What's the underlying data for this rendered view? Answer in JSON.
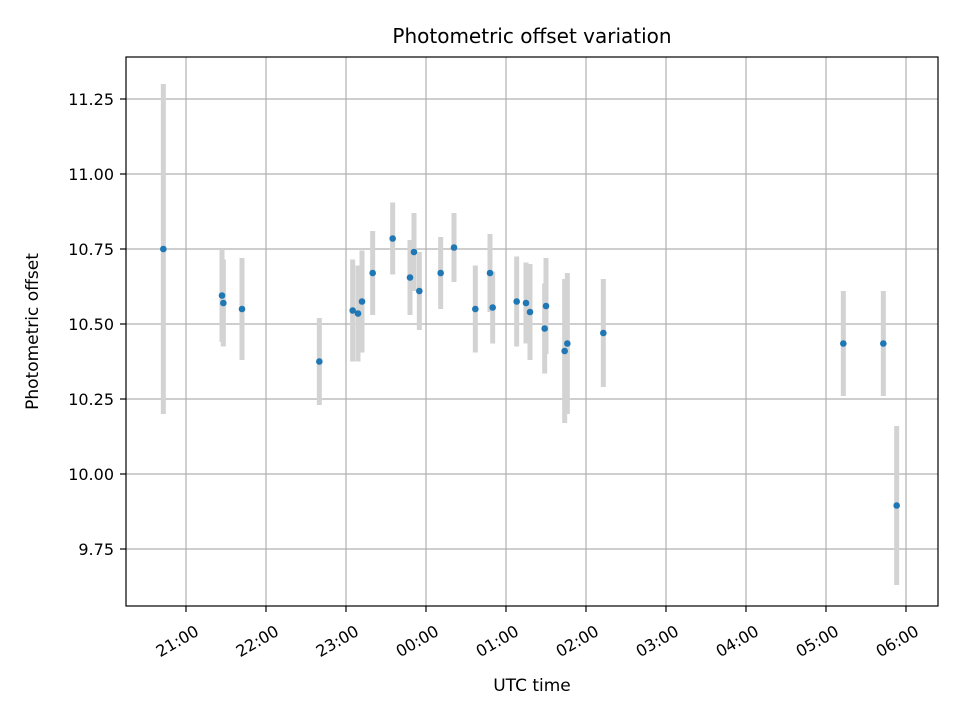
{
  "chart_data": {
    "type": "scatter",
    "title": "Photometric offset variation",
    "xlabel": "UTC time",
    "ylabel": "Photometric offset",
    "grid": true,
    "colors": {
      "point": "#1f77b4",
      "errorbar": "#d3d3d3",
      "grid": "#b0b0b0",
      "axes": "#000000"
    },
    "x_axis": {
      "unit": "hours since 00:00 UTC",
      "range": [
        -3.75,
        6.4
      ],
      "ticks": [
        {
          "v": -3,
          "label": "21:00"
        },
        {
          "v": -2,
          "label": "22:00"
        },
        {
          "v": -1,
          "label": "23:00"
        },
        {
          "v": 0,
          "label": "00:00"
        },
        {
          "v": 1,
          "label": "01:00"
        },
        {
          "v": 2,
          "label": "02:00"
        },
        {
          "v": 3,
          "label": "03:00"
        },
        {
          "v": 4,
          "label": "04:00"
        },
        {
          "v": 5,
          "label": "05:00"
        },
        {
          "v": 6,
          "label": "06:00"
        }
      ]
    },
    "y_axis": {
      "range": [
        9.56,
        11.39
      ],
      "ticks": [
        {
          "v": 9.75,
          "label": "9.75"
        },
        {
          "v": 10.0,
          "label": "10.00"
        },
        {
          "v": 10.25,
          "label": "10.25"
        },
        {
          "v": 10.5,
          "label": "10.50"
        },
        {
          "v": 10.75,
          "label": "10.75"
        },
        {
          "v": 11.0,
          "label": "11.00"
        },
        {
          "v": 11.25,
          "label": "11.25"
        }
      ]
    },
    "points": [
      {
        "time": "20:43",
        "y": 10.75,
        "err": 0.55
      },
      {
        "time": "21:27",
        "y": 10.595,
        "err": 0.155
      },
      {
        "time": "21:28",
        "y": 10.57,
        "err": 0.145
      },
      {
        "time": "21:42",
        "y": 10.55,
        "err": 0.17
      },
      {
        "time": "22:40",
        "y": 10.375,
        "err": 0.145
      },
      {
        "time": "23:05",
        "y": 10.545,
        "err": 0.17
      },
      {
        "time": "23:09",
        "y": 10.535,
        "err": 0.16
      },
      {
        "time": "23:12",
        "y": 10.575,
        "err": 0.17
      },
      {
        "time": "23:20",
        "y": 10.67,
        "err": 0.14
      },
      {
        "time": "23:35",
        "y": 10.785,
        "err": 0.12
      },
      {
        "time": "23:48",
        "y": 10.655,
        "err": 0.125
      },
      {
        "time": "23:51",
        "y": 10.74,
        "err": 0.13
      },
      {
        "time": "23:55",
        "y": 10.61,
        "err": 0.13
      },
      {
        "time": "00:11",
        "y": 10.67,
        "err": 0.12
      },
      {
        "time": "00:21",
        "y": 10.755,
        "err": 0.115
      },
      {
        "time": "00:37",
        "y": 10.55,
        "err": 0.145
      },
      {
        "time": "00:48",
        "y": 10.67,
        "err": 0.13
      },
      {
        "time": "00:50",
        "y": 10.555,
        "err": 0.12
      },
      {
        "time": "01:08",
        "y": 10.575,
        "err": 0.15
      },
      {
        "time": "01:15",
        "y": 10.57,
        "err": 0.135
      },
      {
        "time": "01:18",
        "y": 10.54,
        "err": 0.16
      },
      {
        "time": "01:29",
        "y": 10.485,
        "err": 0.15
      },
      {
        "time": "01:30",
        "y": 10.56,
        "err": 0.16
      },
      {
        "time": "01:44",
        "y": 10.41,
        "err": 0.24
      },
      {
        "time": "01:46",
        "y": 10.435,
        "err": 0.235
      },
      {
        "time": "02:13",
        "y": 10.47,
        "err": 0.18
      },
      {
        "time": "05:13",
        "y": 10.435,
        "err": 0.175
      },
      {
        "time": "05:43",
        "y": 10.435,
        "err": 0.175
      },
      {
        "time": "05:53",
        "y": 9.895,
        "err": 0.265
      }
    ]
  }
}
